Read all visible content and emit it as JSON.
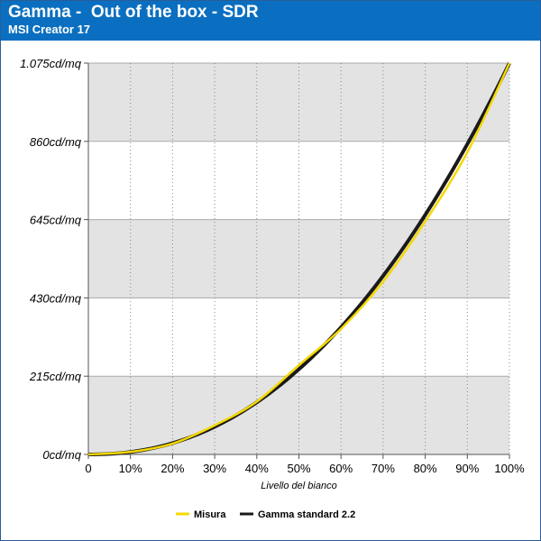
{
  "title": "Gamma -  Out of the box - SDR",
  "subtitle": "MSI Creator 17",
  "chart_data": {
    "type": "line",
    "xlabel": "Livello del bianco",
    "ylabel": "",
    "x_ticks": [
      "0",
      "10%",
      "20%",
      "30%",
      "40%",
      "50%",
      "60%",
      "70%",
      "80%",
      "90%",
      "100%"
    ],
    "y_ticks": [
      "0cd/mq",
      "215cd/mq",
      "430cd/mq",
      "645cd/mq",
      "860cd/mq",
      "1.075cd/mq"
    ],
    "xlim": [
      0,
      100
    ],
    "ylim": [
      0,
      1075
    ],
    "grid": true,
    "legend_position": "bottom",
    "x": [
      0,
      10,
      20,
      30,
      40,
      50,
      60,
      70,
      80,
      90,
      100
    ],
    "series": [
      {
        "name": "Misura",
        "color": "#f5d800",
        "values": [
          0,
          7,
          30,
          80,
          145,
          245,
          345,
          475,
          640,
          830,
          1075
        ]
      },
      {
        "name": "Gamma standard 2.2",
        "color": "#1a1a1a",
        "gamma": 2.2
      }
    ]
  },
  "colors": {
    "header": "#0a6fc0",
    "band": "#e3e3e3"
  }
}
